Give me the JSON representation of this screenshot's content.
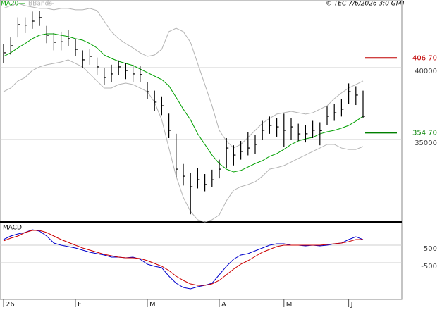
{
  "chart_data": [
    {
      "type": "ohlc",
      "source": "© TEC 7/6/2026 3:0 GMT",
      "color": "#000000",
      "high": [
        41630,
        42100,
        43500,
        43500,
        43900,
        43950,
        42900,
        42400,
        42500,
        42600,
        42010,
        41200,
        41300,
        40700,
        40000,
        40200,
        40500,
        40300,
        40200,
        40100,
        39000,
        38400,
        38000,
        36800,
        35400,
        33300,
        32700,
        33000,
        32600,
        32900,
        33600,
        35100,
        34600,
        34900,
        35500,
        35300,
        36300,
        36600,
        36500,
        36800,
        36500,
        36100,
        36000,
        36300,
        36200,
        37300,
        37500,
        37800,
        38900,
        38700,
        38400
      ],
      "low": [
        40300,
        40900,
        42100,
        42400,
        42700,
        42900,
        41700,
        41200,
        41200,
        41500,
        40800,
        40000,
        40200,
        39500,
        38800,
        39000,
        39500,
        39200,
        39000,
        39000,
        37800,
        37000,
        36700,
        35100,
        32400,
        31800,
        29800,
        31600,
        31400,
        31700,
        32300,
        33000,
        33200,
        33600,
        33900,
        34000,
        35000,
        35400,
        35200,
        34500,
        35000,
        34900,
        34800,
        35100,
        34600,
        36000,
        36300,
        36600,
        37500,
        37400,
        36500
      ],
      "close": [
        41030,
        41520,
        42990,
        42950,
        43230,
        43480,
        42250,
        41760,
        41800,
        42010,
        41270,
        40540,
        40780,
        40050,
        39310,
        39560,
        40050,
        39800,
        39560,
        39520,
        38330,
        37600,
        37350,
        35640,
        32940,
        32450,
        31720,
        32210,
        31870,
        32200,
        32940,
        34410,
        33920,
        34170,
        34410,
        34660,
        35640,
        35980,
        35880,
        35640,
        35880,
        35390,
        35400,
        35640,
        35620,
        36620,
        36860,
        37110,
        38330,
        38090,
        36620
      ],
      "ma20": {
        "name": "MA20",
        "color": "#00a000",
        "values": [
          40780,
          41030,
          41370,
          41670,
          42010,
          42250,
          42350,
          42350,
          42250,
          42160,
          42010,
          41910,
          41670,
          41370,
          40880,
          40640,
          40440,
          40290,
          40150,
          39900,
          39660,
          39410,
          39170,
          38730,
          37940,
          37110,
          36380,
          35400,
          34660,
          33920,
          33330,
          32940,
          32750,
          32850,
          33090,
          33330,
          33530,
          33830,
          34020,
          34320,
          34660,
          34900,
          35050,
          35150,
          35390,
          35540,
          35640,
          35790,
          35980,
          36280,
          36620
        ]
      },
      "bbands": {
        "name": "BBands",
        "color": "#b4b4b4",
        "upper": [
          44120,
          44310,
          44460,
          44310,
          44210,
          44120,
          44120,
          44020,
          44120,
          44120,
          44020,
          44020,
          44120,
          43970,
          43230,
          42500,
          42010,
          41670,
          41370,
          41030,
          40780,
          40880,
          41270,
          42500,
          42740,
          42500,
          41760,
          40290,
          38820,
          37350,
          35640,
          34900,
          34410,
          34660,
          35150,
          35640,
          36130,
          36470,
          36770,
          36860,
          36960,
          36860,
          36770,
          36860,
          37110,
          37350,
          37840,
          38240,
          38580,
          38820,
          39070
        ],
        "lower": [
          38330,
          38580,
          39070,
          39310,
          39800,
          40050,
          40200,
          40290,
          40390,
          40540,
          40290,
          40050,
          39560,
          39070,
          38580,
          38580,
          38820,
          38920,
          38820,
          38580,
          38330,
          37600,
          36380,
          34410,
          32450,
          30980,
          30000,
          29420,
          29270,
          29420,
          29760,
          30740,
          31470,
          31720,
          31870,
          32060,
          32450,
          32940,
          33040,
          33190,
          33430,
          33680,
          33920,
          34170,
          34410,
          34660,
          34660,
          34410,
          34310,
          34310,
          34510
        ]
      },
      "levels": [
        {
          "value": 40670,
          "label": "406 70",
          "color": "#c00000"
        },
        {
          "value": 35470,
          "label": "354 70",
          "color": "#008000"
        }
      ],
      "ylim": [
        29270,
        44700
      ],
      "yticks": [
        40000,
        35000
      ],
      "grid": true
    },
    {
      "type": "line",
      "title": "MACD",
      "categories": [
        "26",
        null,
        null,
        null,
        null,
        null,
        null,
        null,
        null,
        null,
        "F",
        null,
        null,
        null,
        null,
        null,
        null,
        null,
        null,
        null,
        "M",
        null,
        null,
        null,
        null,
        null,
        null,
        null,
        null,
        null,
        "A",
        null,
        null,
        null,
        null,
        null,
        null,
        null,
        null,
        "M",
        null,
        null,
        null,
        null,
        null,
        null,
        null,
        null,
        "J",
        null,
        null
      ],
      "series": [
        {
          "color": "#0000cc",
          "values": [
            820,
            1020,
            1140,
            1220,
            1380,
            1300,
            1020,
            620,
            500,
            420,
            340,
            220,
            100,
            20,
            -60,
            -180,
            -180,
            -220,
            -180,
            -300,
            -580,
            -700,
            -780,
            -1260,
            -1660,
            -1900,
            -1980,
            -1860,
            -1780,
            -1660,
            -1180,
            -700,
            -300,
            -60,
            20,
            180,
            340,
            500,
            580,
            580,
            500,
            500,
            460,
            500,
            460,
            500,
            580,
            620,
            820,
            980,
            820
          ]
        },
        {
          "color": "#cc0000",
          "values": [
            740,
            900,
            1020,
            1220,
            1340,
            1340,
            1220,
            1020,
            820,
            660,
            500,
            340,
            220,
            100,
            -20,
            -100,
            -180,
            -220,
            -220,
            -260,
            -380,
            -540,
            -700,
            -940,
            -1260,
            -1500,
            -1700,
            -1780,
            -1780,
            -1700,
            -1500,
            -1180,
            -860,
            -580,
            -380,
            -140,
            100,
            260,
            420,
            500,
            500,
            500,
            500,
            500,
            500,
            540,
            580,
            620,
            700,
            820,
            820
          ]
        }
      ],
      "ylim": [
        -2580,
        1780
      ],
      "yticks": [
        500,
        -500
      ],
      "grid": true
    }
  ]
}
